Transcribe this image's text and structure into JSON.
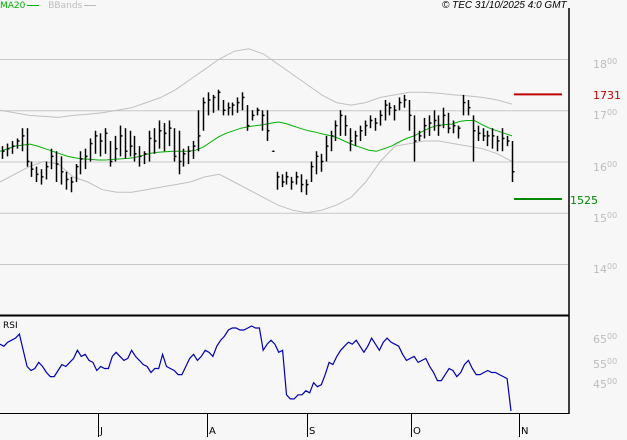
{
  "header": {
    "legend_ma": "MA20",
    "legend_bbands": "BBands",
    "copyright": "© TEC 31/10/2025 4:0 GMT"
  },
  "colors": {
    "background": "#f7f7f7",
    "grid": "#c8c8c8",
    "bars": "#000000",
    "ma20": "#00b000",
    "bbands": "#c0c0c0",
    "resistance": "#c00000",
    "support": "#008800",
    "rsi": "#0000b0",
    "axis_label": "#bdbdbd"
  },
  "price_axis": {
    "labels": [
      {
        "main": "18",
        "sup": "00",
        "value": 1800
      },
      {
        "main": "17",
        "sup": "00",
        "value": 1700
      },
      {
        "main": "16",
        "sup": "00",
        "value": 1600
      },
      {
        "main": "15",
        "sup": "00",
        "value": 1500
      },
      {
        "main": "14",
        "sup": "00",
        "value": 1400
      }
    ]
  },
  "levels": {
    "resistance": {
      "label": "1731",
      "value": 1731
    },
    "support": {
      "label": "1525",
      "value": 1525
    }
  },
  "rsi_panel": {
    "title": "RSI",
    "labels": [
      {
        "main": "65",
        "sup": "00"
      },
      {
        "main": "55",
        "sup": "00"
      },
      {
        "main": "45",
        "sup": "00"
      }
    ]
  },
  "x_axis": {
    "months": [
      "J",
      "A",
      "S",
      "O",
      "N"
    ]
  },
  "chart_data": [
    {
      "type": "ohlc",
      "title": "Price with MA20 and Bollinger Bands",
      "ylim": [
        1310,
        1915
      ],
      "grid": true,
      "x_ticks": [
        "J",
        "A",
        "S",
        "O",
        "N"
      ],
      "y_ticks": [
        1400,
        1500,
        1600,
        1700,
        1800
      ],
      "hlines": [
        {
          "label": "1731",
          "value": 1731,
          "color": "#c00000"
        },
        {
          "label": "1525",
          "value": 1525,
          "color": "#008800"
        }
      ],
      "series": [
        {
          "name": "Price (high/low/close)",
          "bars": [
            [
              1630,
              1605,
              1620
            ],
            [
              1635,
              1610,
              1625
            ],
            [
              1640,
              1615,
              1630
            ],
            [
              1645,
              1625,
              1640
            ],
            [
              1665,
              1620,
              1650
            ],
            [
              1665,
              1590,
              1600
            ],
            [
              1600,
              1570,
              1585
            ],
            [
              1590,
              1560,
              1575
            ],
            [
              1585,
              1555,
              1570
            ],
            [
              1600,
              1565,
              1590
            ],
            [
              1625,
              1585,
              1610
            ],
            [
              1620,
              1560,
              1595
            ],
            [
              1610,
              1555,
              1580
            ],
            [
              1580,
              1545,
              1565
            ],
            [
              1570,
              1540,
              1560
            ],
            [
              1595,
              1560,
              1590
            ],
            [
              1620,
              1575,
              1605
            ],
            [
              1625,
              1585,
              1610
            ],
            [
              1645,
              1600,
              1635
            ],
            [
              1660,
              1615,
              1650
            ],
            [
              1655,
              1610,
              1640
            ],
            [
              1665,
              1615,
              1655
            ],
            [
              1640,
              1590,
              1600
            ],
            [
              1650,
              1600,
              1625
            ],
            [
              1670,
              1610,
              1650
            ],
            [
              1665,
              1605,
              1620
            ],
            [
              1660,
              1610,
              1630
            ],
            [
              1650,
              1600,
              1615
            ],
            [
              1630,
              1590,
              1610
            ],
            [
              1620,
              1595,
              1615
            ],
            [
              1660,
              1600,
              1645
            ],
            [
              1665,
              1615,
              1640
            ],
            [
              1680,
              1625,
              1660
            ],
            [
              1675,
              1620,
              1655
            ],
            [
              1680,
              1630,
              1665
            ],
            [
              1665,
              1600,
              1610
            ],
            [
              1660,
              1575,
              1600
            ],
            [
              1625,
              1590,
              1615
            ],
            [
              1630,
              1595,
              1620
            ],
            [
              1640,
              1605,
              1630
            ],
            [
              1700,
              1620,
              1650
            ],
            [
              1725,
              1660,
              1715
            ],
            [
              1735,
              1690,
              1720
            ],
            [
              1730,
              1695,
              1725
            ],
            [
              1740,
              1700,
              1735
            ],
            [
              1720,
              1690,
              1700
            ],
            [
              1715,
              1690,
              1705
            ],
            [
              1715,
              1690,
              1710
            ],
            [
              1725,
              1695,
              1715
            ],
            [
              1735,
              1700,
              1725
            ],
            [
              1710,
              1660,
              1670
            ],
            [
              1700,
              1680,
              1690
            ],
            [
              1705,
              1690,
              1700
            ],
            [
              1700,
              1660,
              1690
            ],
            [
              1700,
              1640,
              1660
            ],
            [
              1620,
              1619,
              1620
            ],
            [
              1580,
              1545,
              1570
            ],
            [
              1575,
              1550,
              1560
            ],
            [
              1580,
              1555,
              1570
            ],
            [
              1570,
              1545,
              1560
            ],
            [
              1580,
              1555,
              1570
            ],
            [
              1575,
              1540,
              1555
            ],
            [
              1565,
              1535,
              1555
            ],
            [
              1600,
              1560,
              1590
            ],
            [
              1620,
              1575,
              1610
            ],
            [
              1615,
              1580,
              1600
            ],
            [
              1650,
              1600,
              1630
            ],
            [
              1660,
              1620,
              1650
            ],
            [
              1680,
              1640,
              1670
            ],
            [
              1700,
              1650,
              1690
            ],
            [
              1690,
              1650,
              1670
            ],
            [
              1665,
              1620,
              1640
            ],
            [
              1660,
              1630,
              1650
            ],
            [
              1670,
              1640,
              1660
            ],
            [
              1680,
              1650,
              1670
            ],
            [
              1690,
              1665,
              1680
            ],
            [
              1685,
              1660,
              1675
            ],
            [
              1700,
              1670,
              1690
            ],
            [
              1720,
              1680,
              1710
            ],
            [
              1715,
              1690,
              1705
            ],
            [
              1710,
              1680,
              1700
            ],
            [
              1725,
              1700,
              1715
            ],
            [
              1730,
              1705,
              1720
            ],
            [
              1720,
              1660,
              1690
            ],
            [
              1690,
              1600,
              1640
            ],
            [
              1660,
              1640,
              1650
            ],
            [
              1685,
              1645,
              1670
            ],
            [
              1690,
              1650,
              1675
            ],
            [
              1700,
              1660,
              1680
            ],
            [
              1690,
              1650,
              1670
            ],
            [
              1705,
              1665,
              1690
            ],
            [
              1695,
              1655,
              1665
            ],
            [
              1680,
              1655,
              1670
            ],
            [
              1670,
              1645,
              1665
            ],
            [
              1730,
              1690,
              1715
            ],
            [
              1720,
              1690,
              1705
            ],
            [
              1690,
              1600,
              1660
            ],
            [
              1670,
              1640,
              1655
            ],
            [
              1665,
              1640,
              1650
            ],
            [
              1660,
              1630,
              1650
            ],
            [
              1665,
              1625,
              1650
            ],
            [
              1650,
              1620,
              1640
            ],
            [
              1665,
              1620,
              1645
            ],
            [
              1650,
              1630,
              1640
            ],
            [
              1640,
              1560,
              1580
            ]
          ]
        },
        {
          "name": "MA20",
          "values": [
            1620,
            1625,
            1630,
            1632,
            1634,
            1630,
            1625,
            1620,
            1615,
            1610,
            1607,
            1605,
            1604,
            1603,
            1603,
            1604,
            1605,
            1606,
            1608,
            1612,
            1616,
            1618,
            1619,
            1620,
            1620,
            1620,
            1622,
            1628,
            1638,
            1648,
            1655,
            1660,
            1665,
            1668,
            1670,
            1672,
            1675,
            1677,
            1674,
            1669,
            1664,
            1660,
            1657,
            1653,
            1650,
            1645,
            1638,
            1632,
            1627,
            1622,
            1620,
            1625,
            1630,
            1638,
            1645,
            1650,
            1658,
            1665,
            1670,
            1672,
            1673,
            1678,
            1680,
            1680,
            1672,
            1665,
            1660,
            1655,
            1650
          ]
        },
        {
          "name": "BBands upper",
          "values": [
            1700,
            1695,
            1690,
            1688,
            1686,
            1690,
            1692,
            1695,
            1700,
            1705,
            1715,
            1725,
            1740,
            1760,
            1780,
            1800,
            1815,
            1820,
            1810,
            1790,
            1770,
            1750,
            1730,
            1715,
            1710,
            1715,
            1725,
            1730,
            1735,
            1735,
            1733,
            1730,
            1728,
            1725,
            1720,
            1712
          ]
        },
        {
          "name": "BBands lower",
          "values": [
            1560,
            1575,
            1590,
            1600,
            1595,
            1570,
            1560,
            1545,
            1540,
            1540,
            1545,
            1550,
            1555,
            1560,
            1570,
            1575,
            1560,
            1545,
            1530,
            1515,
            1505,
            1500,
            1505,
            1515,
            1530,
            1560,
            1600,
            1630,
            1635,
            1640,
            1640,
            1635,
            1630,
            1625,
            1615,
            1600
          ]
        }
      ]
    },
    {
      "type": "line",
      "title": "RSI",
      "y_ticks": [
        "6500",
        "5500",
        "4500"
      ],
      "series": [
        {
          "name": "RSI",
          "values": [
            61,
            60,
            62,
            63,
            64,
            66,
            58,
            50,
            48,
            49,
            52,
            50,
            47,
            45,
            45,
            48,
            51,
            50,
            52,
            54,
            58,
            55,
            56,
            53,
            52,
            48,
            50,
            49,
            49,
            55,
            57,
            55,
            53,
            54,
            58,
            55,
            53,
            51,
            50,
            47,
            49,
            49,
            56,
            50,
            49,
            48,
            46,
            46,
            50,
            54,
            56,
            53,
            55,
            58,
            57,
            55,
            60,
            63,
            65,
            68,
            69,
            69,
            68,
            68,
            69,
            70,
            69,
            69,
            58,
            61,
            63,
            61,
            57,
            58,
            36,
            34,
            34,
            36,
            36,
            38,
            37,
            42,
            40,
            41,
            46,
            52,
            51,
            55,
            58,
            60,
            62,
            61,
            63,
            60,
            57,
            60,
            64,
            61,
            58,
            62,
            64,
            62,
            61,
            60,
            56,
            53,
            54,
            55,
            52,
            53,
            54,
            50,
            47,
            43,
            43,
            46,
            49,
            48,
            45,
            47,
            51,
            53,
            49,
            46,
            46,
            47,
            48,
            47,
            47,
            46,
            45,
            44,
            28
          ]
        }
      ]
    }
  ]
}
